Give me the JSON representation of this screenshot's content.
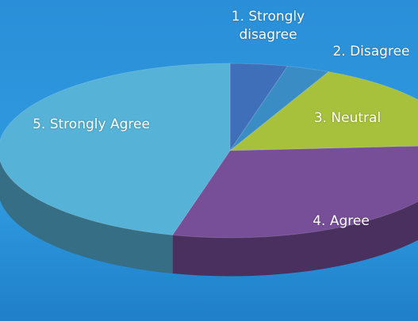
{
  "chart_data": {
    "type": "pie3d",
    "categories": [
      "1. Strongly disagree",
      "2. Disagree",
      "3. Neutral",
      "4. Agree",
      "5. Strongly Agree"
    ],
    "values": [
      4,
      3,
      17,
      30,
      46
    ],
    "colors": [
      "#3f6fb8",
      "#3a8cc4",
      "#a7c13c",
      "#774e98",
      "#56b2d6"
    ]
  }
}
